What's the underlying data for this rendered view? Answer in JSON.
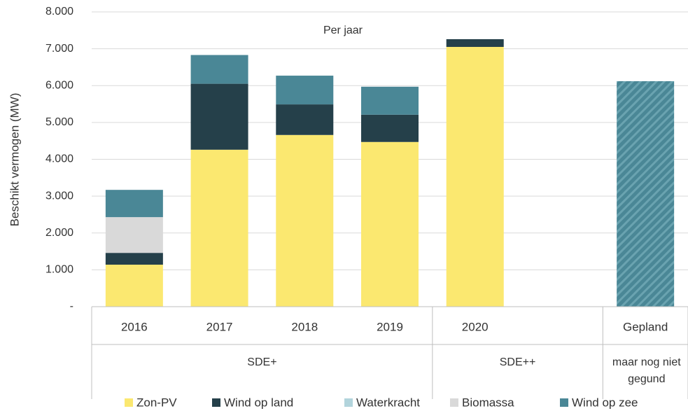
{
  "chart_data": {
    "type": "stacked_bar",
    "annotation": "Per jaar",
    "y_label": "Beschikt vermogen (MW)",
    "categories": [
      "2016",
      "2017",
      "2018",
      "2019",
      "2020",
      null,
      "Gepland"
    ],
    "groups": [
      {
        "label": "SDE+",
        "span": 4
      },
      {
        "label": "SDE++",
        "span": 2
      },
      {
        "label": "maar nog niet gegund",
        "span": 1
      }
    ],
    "series": [
      {
        "name": "Zon-PV",
        "color": "#fbe870",
        "values": [
          1140,
          4260,
          4660,
          4470,
          7050,
          null,
          null
        ]
      },
      {
        "name": "Wind op land",
        "color": "#25404a",
        "values": [
          320,
          1790,
          830,
          740,
          210,
          null,
          null
        ]
      },
      {
        "name": "Waterkracht",
        "color": "#b2d4dc",
        "values": [
          0,
          0,
          0,
          0,
          0,
          null,
          null
        ]
      },
      {
        "name": "Biomassa",
        "color": "#d9d9d9",
        "values": [
          970,
          0,
          0,
          0,
          0,
          null,
          null
        ]
      },
      {
        "name": "Wind op zee",
        "color": "#4a8796",
        "values": [
          740,
          780,
          780,
          760,
          0,
          null,
          6120
        ]
      }
    ],
    "hatched_categories": [
      6
    ],
    "ylim": [
      0,
      8000
    ],
    "yticks": [
      {
        "value": 0,
        "label": "-"
      },
      {
        "value": 1000,
        "label": "1.000"
      },
      {
        "value": 2000,
        "label": "2.000"
      },
      {
        "value": 3000,
        "label": "3.000"
      },
      {
        "value": 4000,
        "label": "4.000"
      },
      {
        "value": 5000,
        "label": "5.000"
      },
      {
        "value": 6000,
        "label": "6.000"
      },
      {
        "value": 7000,
        "label": "7.000"
      },
      {
        "value": 8000,
        "label": "8.000"
      }
    ],
    "grid": true,
    "legend": "bottom"
  }
}
